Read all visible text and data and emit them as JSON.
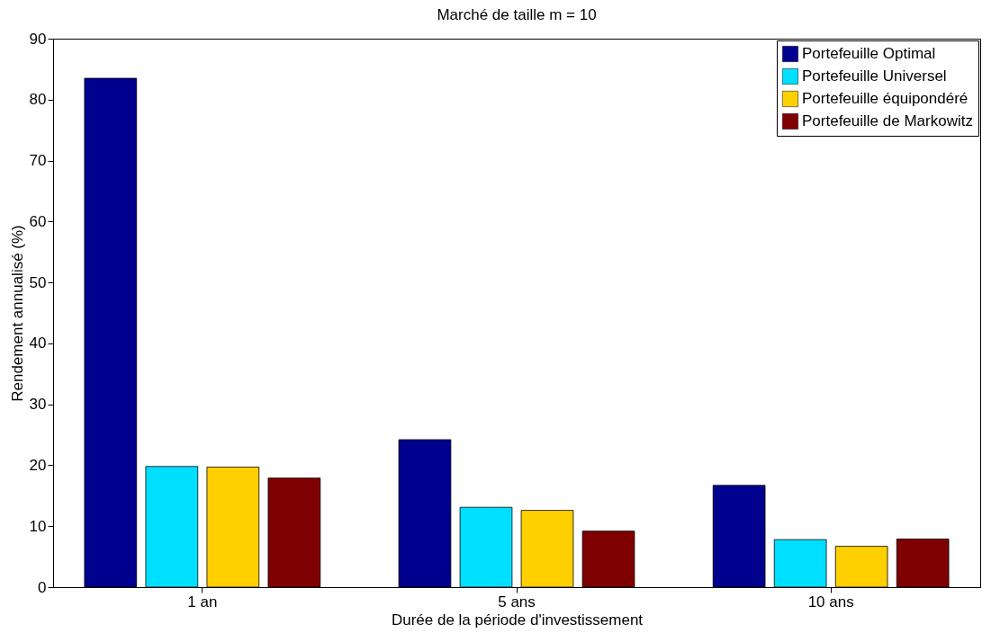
{
  "chart_data": {
    "type": "bar",
    "title": "Marché de taille m = 10",
    "xlabel": "Durée de la période d'investissement",
    "ylabel": "Rendement annualisé (%)",
    "categories": [
      "1 an",
      "5 ans",
      "10 ans"
    ],
    "series": [
      {
        "name": "Portefeuille Optimal",
        "color": "#00008f",
        "values": [
          83.5,
          24.2,
          16.7
        ]
      },
      {
        "name": "Portefeuille Universel",
        "color": "#00dfff",
        "values": [
          19.8,
          13.1,
          7.8
        ]
      },
      {
        "name": "Portefeuille équipondéré",
        "color": "#ffcf00",
        "values": [
          19.7,
          12.6,
          6.7
        ]
      },
      {
        "name": "Portefeuille de Markowitz",
        "color": "#7f0000",
        "values": [
          17.9,
          9.2,
          7.9
        ]
      }
    ],
    "ylim": [
      0,
      90
    ],
    "yticks": [
      0,
      10,
      20,
      30,
      40,
      50,
      60,
      70,
      80,
      90
    ],
    "grid": false,
    "legend": "top right"
  }
}
